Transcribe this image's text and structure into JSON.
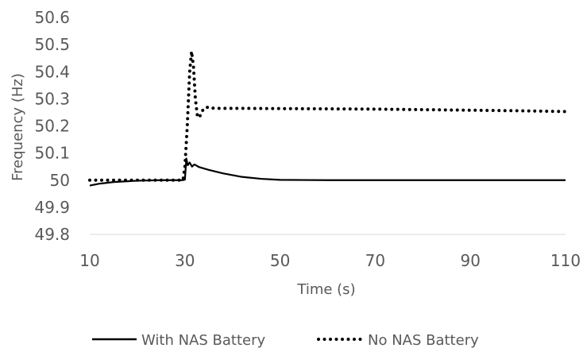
{
  "chart_data": {
    "type": "line",
    "xlabel": "Time (s)",
    "ylabel": "Frequency (Hz)",
    "xlim": [
      10,
      110
    ],
    "ylim": [
      49.8,
      50.6
    ],
    "xticks": [
      "10",
      "30",
      "50",
      "70",
      "90",
      "110"
    ],
    "yticks": [
      "49.8",
      "49.9",
      "50",
      "50.1",
      "50.2",
      "50.3",
      "50.4",
      "50.5",
      "50.6"
    ],
    "grid": false,
    "legend_position": "bottom",
    "series": [
      {
        "name": "With NAS Battery",
        "style": "solid",
        "color": "#000000",
        "points": [
          [
            10,
            49.98
          ],
          [
            12,
            49.987
          ],
          [
            15,
            49.993
          ],
          [
            20,
            49.998
          ],
          [
            25,
            50.0
          ],
          [
            29.5,
            50.0
          ],
          [
            30,
            50.002
          ],
          [
            30.3,
            50.08
          ],
          [
            30.6,
            50.055
          ],
          [
            31,
            50.065
          ],
          [
            31.5,
            50.05
          ],
          [
            32,
            50.058
          ],
          [
            33,
            50.048
          ],
          [
            35,
            50.038
          ],
          [
            38,
            50.025
          ],
          [
            42,
            50.012
          ],
          [
            46,
            50.005
          ],
          [
            50,
            50.001
          ],
          [
            60,
            50.0
          ],
          [
            110,
            50.0
          ]
        ]
      },
      {
        "name": "No NAS Battery",
        "style": "dotted",
        "color": "#000000",
        "points": [
          [
            10,
            50.0
          ],
          [
            15,
            50.0
          ],
          [
            20,
            50.0
          ],
          [
            25,
            50.0
          ],
          [
            29.6,
            50.0
          ],
          [
            30,
            50.05
          ],
          [
            30.5,
            50.2
          ],
          [
            31,
            50.4
          ],
          [
            31.4,
            50.475
          ],
          [
            31.8,
            50.42
          ],
          [
            32.2,
            50.3
          ],
          [
            32.6,
            50.24
          ],
          [
            33,
            50.23
          ],
          [
            33.5,
            50.25
          ],
          [
            34,
            50.265
          ],
          [
            35,
            50.27
          ],
          [
            36,
            50.265
          ],
          [
            40,
            50.265
          ],
          [
            50,
            50.264
          ],
          [
            60,
            50.263
          ],
          [
            70,
            50.262
          ],
          [
            80,
            50.26
          ],
          [
            90,
            50.258
          ],
          [
            100,
            50.256
          ],
          [
            110,
            50.253
          ]
        ]
      }
    ]
  }
}
